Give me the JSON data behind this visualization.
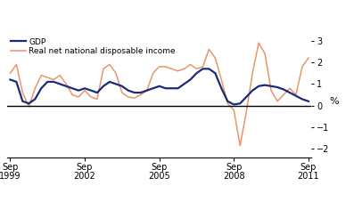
{
  "gdp": [
    1.2,
    1.1,
    0.2,
    0.1,
    0.3,
    0.8,
    1.1,
    1.1,
    1.0,
    0.9,
    0.8,
    0.7,
    0.8,
    0.7,
    0.6,
    0.9,
    1.1,
    1.0,
    0.9,
    0.7,
    0.6,
    0.6,
    0.7,
    0.8,
    0.9,
    0.8,
    0.8,
    0.8,
    1.0,
    1.2,
    1.5,
    1.7,
    1.7,
    1.5,
    0.8,
    0.2,
    0.05,
    0.1,
    0.4,
    0.7,
    0.9,
    0.95,
    0.9,
    0.85,
    0.75,
    0.6,
    0.45,
    0.3,
    0.2
  ],
  "rndi": [
    1.5,
    1.9,
    0.6,
    -0.05,
    0.8,
    1.4,
    1.3,
    1.2,
    1.4,
    1.0,
    0.5,
    0.4,
    0.7,
    0.4,
    0.3,
    1.7,
    1.9,
    1.5,
    0.6,
    0.4,
    0.35,
    0.5,
    0.7,
    1.5,
    1.8,
    1.8,
    1.7,
    1.6,
    1.7,
    1.9,
    1.7,
    1.8,
    2.6,
    2.2,
    1.2,
    0.1,
    -0.2,
    -1.85,
    -0.3,
    1.5,
    2.9,
    2.4,
    0.7,
    0.2,
    0.5,
    0.8,
    0.5,
    1.8,
    2.2
  ],
  "xtick_positions": [
    0,
    12,
    24,
    36,
    48
  ],
  "xtick_labels": [
    "Sep\n1999",
    "Sep\n2002",
    "Sep\n2005",
    "Sep\n2008",
    "Sep\n2011"
  ],
  "yticks": [
    -2,
    -1,
    0,
    1,
    2,
    3
  ],
  "ylim": [
    -2.4,
    3.2
  ],
  "ylabel": "%",
  "gdp_color": "#1b2a7b",
  "rndi_color": "#e8956b",
  "gdp_label": "GDP",
  "rndi_label": "Real net national disposable income",
  "zero_line_color": "#000000",
  "background_color": "#ffffff",
  "gdp_lw": 1.6,
  "rndi_lw": 1.1
}
